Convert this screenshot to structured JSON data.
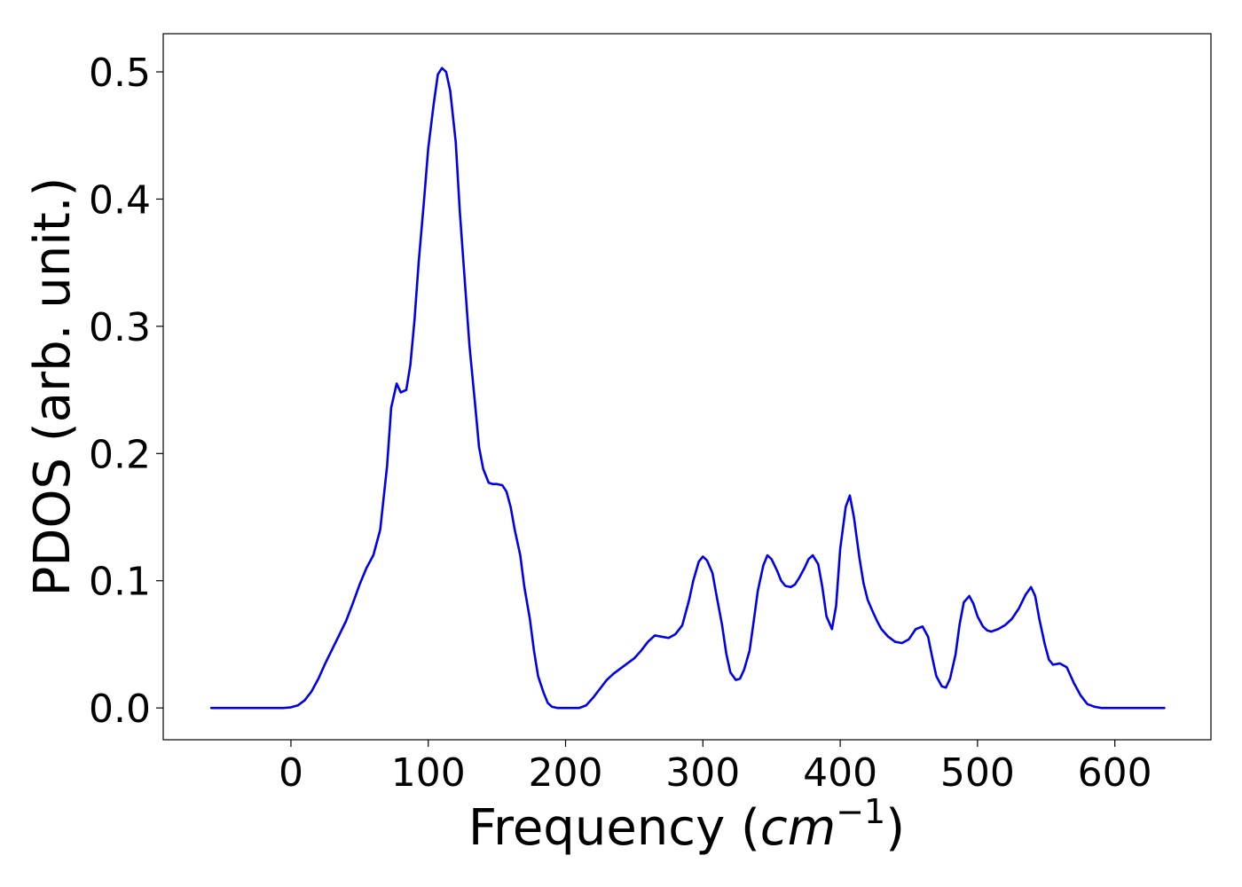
{
  "chart_data": {
    "type": "line",
    "title": "",
    "xlabel_prefix": "Frequency (",
    "xlabel_math_base": "cm",
    "xlabel_math_sup": "−1",
    "xlabel_suffix": ")",
    "ylabel": "PDOS (arb. unit.)",
    "xlim": [
      -93,
      670
    ],
    "ylim": [
      -0.025,
      0.53
    ],
    "x_ticks": [
      0,
      100,
      200,
      300,
      400,
      500,
      600
    ],
    "x_tick_labels": [
      "0",
      "100",
      "200",
      "300",
      "400",
      "500",
      "600"
    ],
    "y_ticks": [
      0.0,
      0.1,
      0.2,
      0.3,
      0.4,
      0.5
    ],
    "y_tick_labels": [
      "0.0",
      "0.1",
      "0.2",
      "0.3",
      "0.4",
      "0.5"
    ],
    "grid": false,
    "line_color": "#0000ee",
    "series": [
      {
        "x": [
          -58,
          -20,
          -5,
          0,
          5,
          10,
          15,
          20,
          25,
          30,
          35,
          40,
          45,
          50,
          55,
          60,
          65,
          70,
          73,
          77,
          80,
          84,
          87,
          90,
          93,
          97,
          100,
          104,
          107,
          110,
          113,
          116,
          120,
          123,
          127,
          130,
          134,
          137,
          140,
          144,
          147,
          150,
          154,
          157,
          160,
          163,
          167,
          170,
          174,
          177,
          180,
          184,
          187,
          190,
          194,
          197,
          200,
          210,
          215,
          220,
          225,
          230,
          235,
          240,
          245,
          250,
          255,
          260,
          265,
          270,
          275,
          280,
          285,
          290,
          293,
          297,
          300,
          303,
          307,
          310,
          314,
          317,
          320,
          324,
          327,
          330,
          334,
          337,
          340,
          344,
          347,
          350,
          354,
          357,
          360,
          364,
          367,
          370,
          374,
          377,
          380,
          384,
          387,
          390,
          394,
          397,
          400,
          404,
          407,
          410,
          414,
          417,
          420,
          424,
          427,
          430,
          435,
          440,
          445,
          450,
          455,
          460,
          464,
          467,
          470,
          474,
          477,
          480,
          484,
          487,
          490,
          494,
          497,
          500,
          504,
          507,
          510,
          515,
          520,
          525,
          530,
          535,
          539,
          542,
          545,
          549,
          552,
          555,
          560,
          565,
          570,
          575,
          580,
          585,
          590,
          600,
          610,
          636
        ],
        "y": [
          0.0,
          0.0,
          0.0,
          0.0005,
          0.002,
          0.006,
          0.013,
          0.023,
          0.035,
          0.046,
          0.057,
          0.068,
          0.082,
          0.097,
          0.11,
          0.12,
          0.14,
          0.19,
          0.236,
          0.255,
          0.248,
          0.25,
          0.27,
          0.305,
          0.35,
          0.4,
          0.44,
          0.475,
          0.498,
          0.503,
          0.5,
          0.485,
          0.445,
          0.39,
          0.33,
          0.285,
          0.24,
          0.205,
          0.188,
          0.177,
          0.176,
          0.176,
          0.175,
          0.17,
          0.158,
          0.14,
          0.12,
          0.095,
          0.07,
          0.045,
          0.025,
          0.012,
          0.004,
          0.001,
          0.0,
          0.0,
          0.0,
          0.0,
          0.002,
          0.008,
          0.015,
          0.022,
          0.027,
          0.031,
          0.035,
          0.039,
          0.045,
          0.052,
          0.057,
          0.056,
          0.055,
          0.058,
          0.065,
          0.085,
          0.1,
          0.115,
          0.119,
          0.116,
          0.106,
          0.088,
          0.065,
          0.043,
          0.028,
          0.022,
          0.023,
          0.03,
          0.045,
          0.068,
          0.092,
          0.112,
          0.12,
          0.117,
          0.108,
          0.1,
          0.096,
          0.095,
          0.097,
          0.102,
          0.11,
          0.117,
          0.12,
          0.113,
          0.095,
          0.072,
          0.062,
          0.08,
          0.125,
          0.158,
          0.167,
          0.15,
          0.118,
          0.098,
          0.085,
          0.075,
          0.068,
          0.062,
          0.056,
          0.052,
          0.051,
          0.054,
          0.062,
          0.064,
          0.056,
          0.04,
          0.025,
          0.017,
          0.016,
          0.023,
          0.042,
          0.066,
          0.083,
          0.088,
          0.082,
          0.072,
          0.064,
          0.061,
          0.06,
          0.062,
          0.065,
          0.07,
          0.078,
          0.089,
          0.095,
          0.088,
          0.07,
          0.05,
          0.038,
          0.034,
          0.035,
          0.032,
          0.02,
          0.01,
          0.003,
          0.001,
          0.0,
          0.0,
          0.0,
          0.0
        ]
      }
    ]
  }
}
